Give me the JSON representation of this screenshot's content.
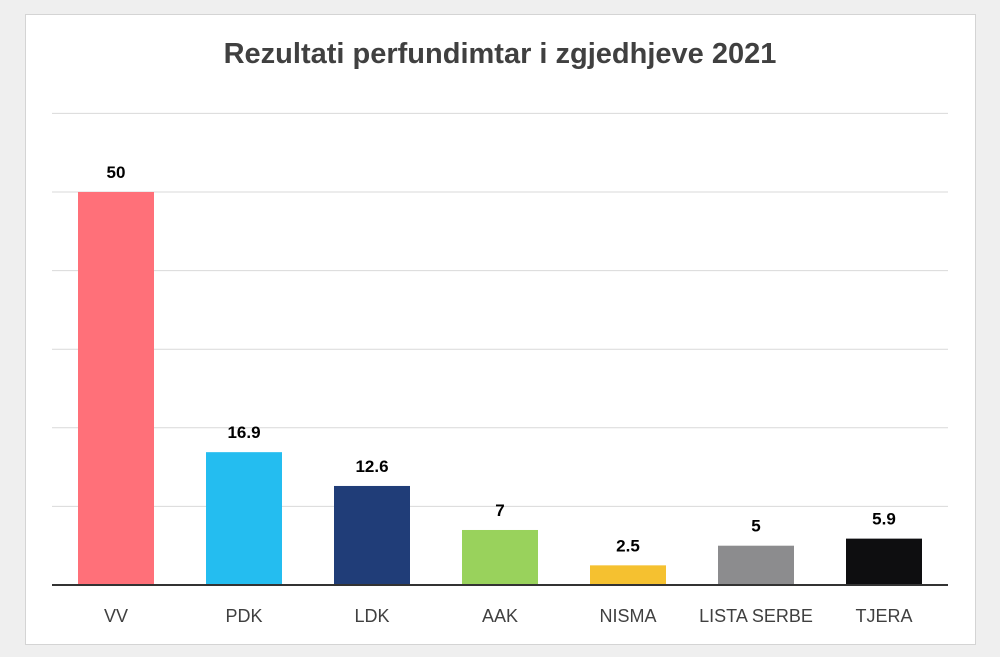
{
  "chart_data": {
    "type": "bar",
    "title": "Rezultati perfundimtar i zgjedhjeve 2021",
    "xlabel": "",
    "ylabel": "",
    "categories": [
      "VV",
      "PDK",
      "LDK",
      "AAK",
      "NISMA",
      "LISTA SERBE",
      "TJERA"
    ],
    "values": [
      50,
      16.9,
      12.6,
      7,
      2.5,
      5,
      5.9
    ],
    "value_labels": [
      "50",
      "16.9",
      "12.6",
      "7",
      "2.5",
      "5",
      "5.9"
    ],
    "colors": [
      "#ff7079",
      "#24bdf0",
      "#203d78",
      "#99d25c",
      "#f5c130",
      "#8c8c8e",
      "#0e0e10"
    ],
    "ylim": [
      0,
      60
    ],
    "grid": true,
    "legend": "none"
  }
}
